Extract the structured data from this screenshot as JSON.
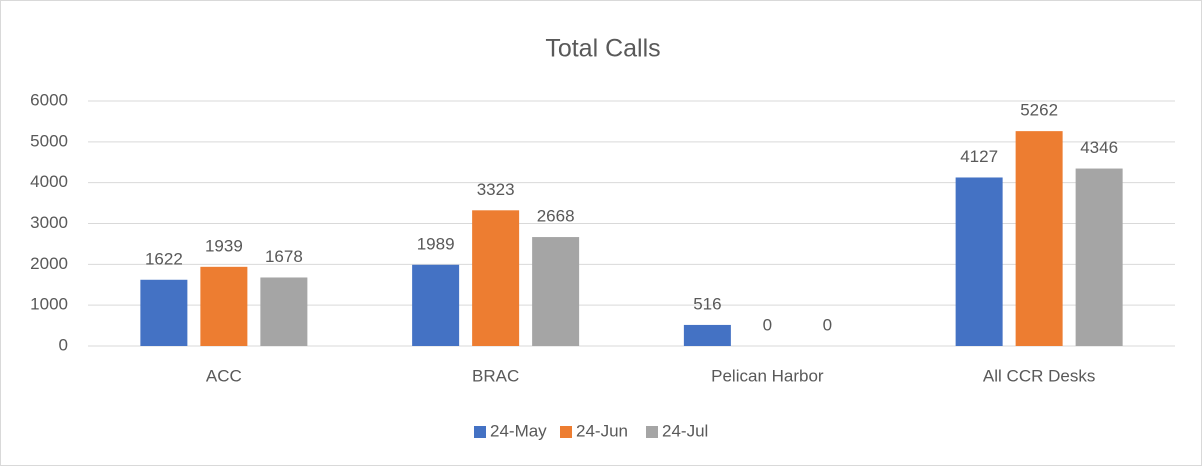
{
  "chart_data": {
    "type": "bar",
    "title": "Total Calls",
    "categories": [
      "ACC",
      "BRAC",
      "Pelican Harbor",
      "All CCR Desks"
    ],
    "series": [
      {
        "name": "24-May",
        "color": "#4472c4",
        "values": [
          1622,
          1989,
          516,
          4127
        ]
      },
      {
        "name": "24-Jun",
        "color": "#ed7d31",
        "values": [
          1939,
          3323,
          0,
          5262
        ]
      },
      {
        "name": "24-Jul",
        "color": "#a5a5a5",
        "values": [
          1678,
          2668,
          0,
          4346
        ]
      }
    ],
    "ylim": [
      0,
      6000
    ],
    "yticks": [
      0,
      1000,
      2000,
      3000,
      4000,
      5000,
      6000
    ],
    "grid": true,
    "legend": "bottom",
    "data_labels": true
  }
}
